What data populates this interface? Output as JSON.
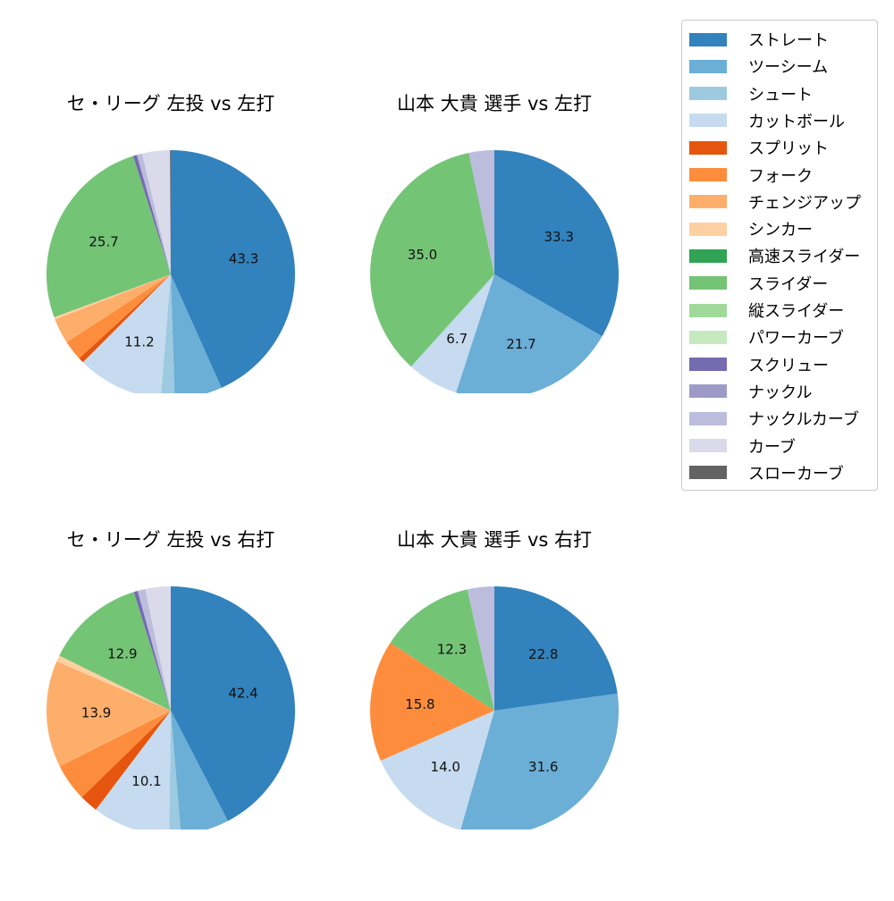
{
  "legend": {
    "items": [
      {
        "label": "ストレート",
        "color": "#3182bd"
      },
      {
        "label": "ツーシーム",
        "color": "#6baed6"
      },
      {
        "label": "シュート",
        "color": "#9ecae1"
      },
      {
        "label": "カットボール",
        "color": "#c6dbef"
      },
      {
        "label": "スプリット",
        "color": "#e6550d"
      },
      {
        "label": "フォーク",
        "color": "#fd8d3c"
      },
      {
        "label": "チェンジアップ",
        "color": "#fdae6b"
      },
      {
        "label": "シンカー",
        "color": "#fdd0a2"
      },
      {
        "label": "高速スライダー",
        "color": "#31a354"
      },
      {
        "label": "スライダー",
        "color": "#74c476"
      },
      {
        "label": "縦スライダー",
        "color": "#a1d99b"
      },
      {
        "label": "パワーカーブ",
        "color": "#c7e9c0"
      },
      {
        "label": "スクリュー",
        "color": "#756bb1"
      },
      {
        "label": "ナックル",
        "color": "#9e9ac8"
      },
      {
        "label": "ナックルカーブ",
        "color": "#bcbddc"
      },
      {
        "label": "カーブ",
        "color": "#dadaeb"
      },
      {
        "label": "スローカーブ",
        "color": "#636363"
      }
    ]
  },
  "chart_data": [
    {
      "type": "pie",
      "title": "セ・リーグ 左投 vs 左打",
      "labels": [
        "ストレート",
        "ツーシーム",
        "シュート",
        "カットボール",
        "スプリット",
        "フォーク",
        "チェンジアップ",
        "シンカー",
        "スライダー",
        "スクリュー",
        "ナックルカーブ",
        "カーブ",
        "スローカーブ"
      ],
      "values": [
        43.3,
        6.2,
        1.8,
        11.2,
        0.7,
        2.6,
        3.3,
        0.3,
        25.7,
        0.5,
        0.7,
        3.6,
        0.1
      ],
      "shown_labels": [
        "43.3",
        "",
        "",
        "11.2",
        "",
        "",
        "",
        "",
        "25.7",
        "",
        "",
        "",
        ""
      ],
      "start_angle": 90,
      "direction": "clockwise"
    },
    {
      "type": "pie",
      "title": "山本 大貴 選手 vs 左打",
      "labels": [
        "ストレート",
        "ツーシーム",
        "カットボール",
        "スライダー",
        "ナックルカーブ"
      ],
      "values": [
        33.3,
        21.7,
        6.7,
        35.0,
        3.3
      ],
      "shown_labels": [
        "33.3",
        "21.7",
        "6.7",
        "35.0",
        ""
      ],
      "start_angle": 90,
      "direction": "clockwise"
    },
    {
      "type": "pie",
      "title": "セ・リーグ 左投 vs 右打",
      "labels": [
        "ストレート",
        "ツーシーム",
        "シュート",
        "カットボール",
        "スプリット",
        "フォーク",
        "チェンジアップ",
        "シンカー",
        "スライダー",
        "スクリュー",
        "ナックルカーブ",
        "カーブ"
      ],
      "values": [
        42.4,
        6.3,
        1.5,
        10.1,
        2.4,
        4.9,
        13.9,
        0.8,
        12.9,
        0.5,
        1.0,
        3.3
      ],
      "shown_labels": [
        "42.4",
        "",
        "",
        "10.1",
        "",
        "",
        "13.9",
        "",
        "12.9",
        "",
        "",
        ""
      ],
      "start_angle": 90,
      "direction": "clockwise"
    },
    {
      "type": "pie",
      "title": "山本 大貴 選手 vs 右打",
      "labels": [
        "ストレート",
        "ツーシーム",
        "カットボール",
        "フォーク",
        "スライダー",
        "ナックルカーブ"
      ],
      "values": [
        22.8,
        31.6,
        14.0,
        15.8,
        12.3,
        3.5
      ],
      "shown_labels": [
        "22.8",
        "31.6",
        "14.0",
        "15.8",
        "12.3",
        ""
      ],
      "start_angle": 90,
      "direction": "clockwise"
    }
  ]
}
